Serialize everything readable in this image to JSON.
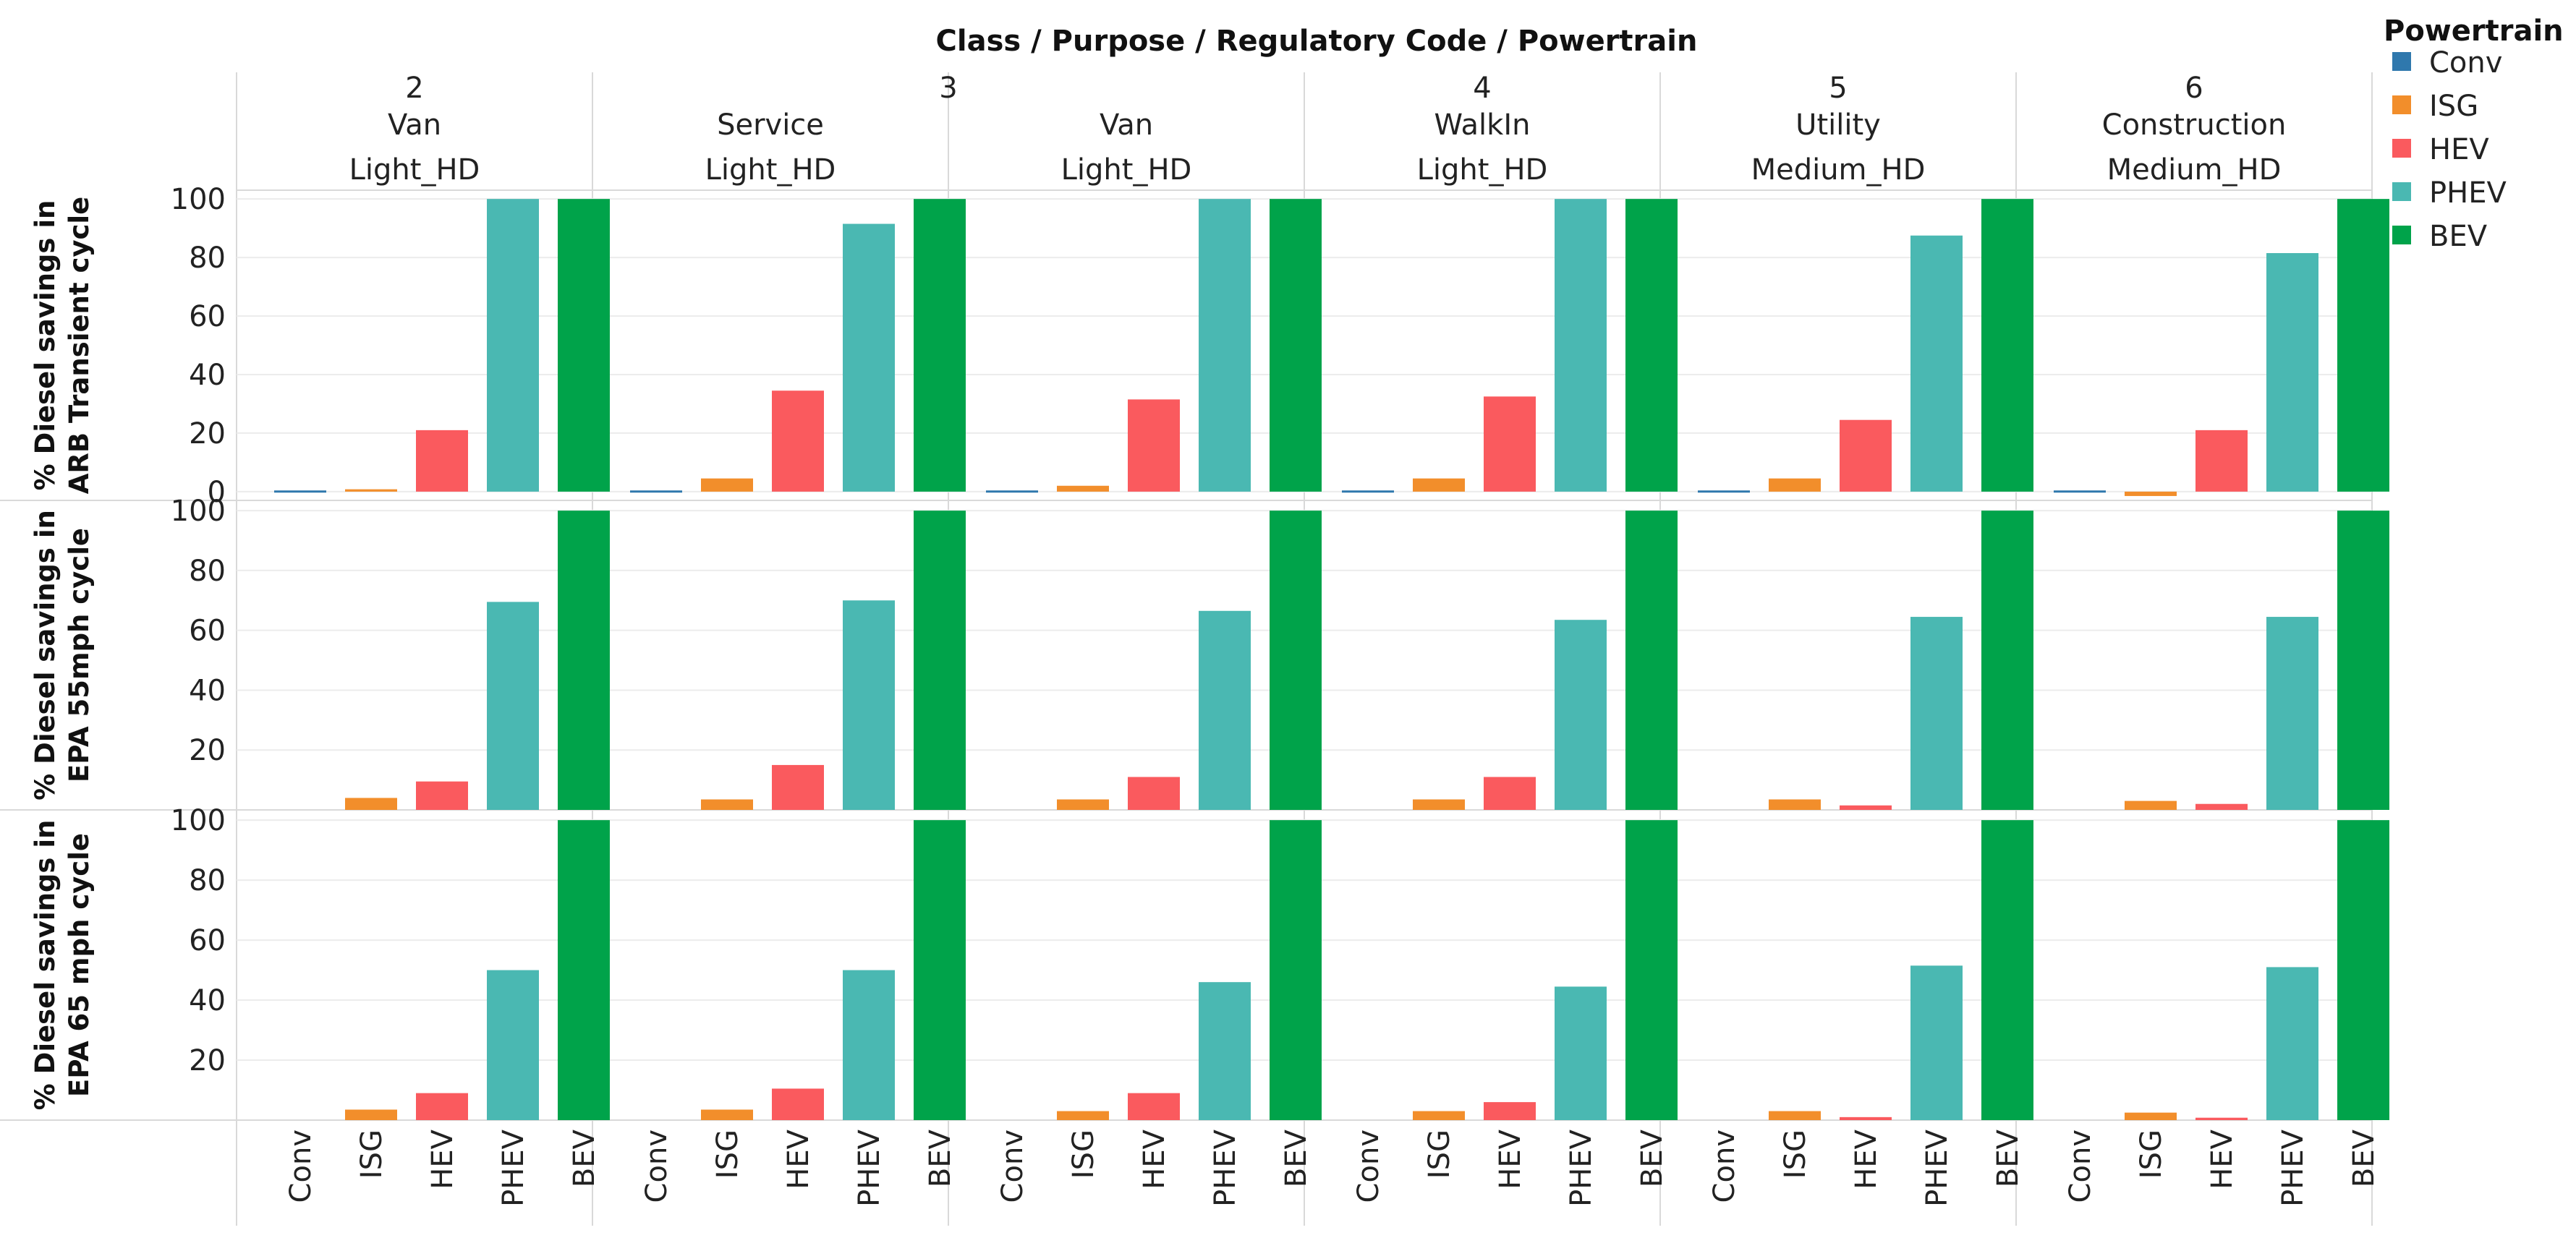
{
  "chart_data": {
    "type": "bar",
    "title": "Class  /  Purpose  /  Regulatory Code  /  Powertrain",
    "columns": [
      {
        "class": "2",
        "purpose": "Van",
        "regulatory_code": "Light_HD"
      },
      {
        "class": "3",
        "purpose": "Service",
        "regulatory_code": "Light_HD"
      },
      {
        "class": "3",
        "purpose": "Van",
        "regulatory_code": "Light_HD"
      },
      {
        "class": "4",
        "purpose": "WalkIn",
        "regulatory_code": "Light_HD"
      },
      {
        "class": "5",
        "purpose": "Utility",
        "regulatory_code": "Medium_HD"
      },
      {
        "class": "6",
        "purpose": "Construction",
        "regulatory_code": "Medium_HD"
      }
    ],
    "class_groups": [
      {
        "label": "2",
        "span": [
          0,
          0
        ]
      },
      {
        "label": "3",
        "span": [
          1,
          2
        ]
      },
      {
        "label": "4",
        "span": [
          3,
          3
        ]
      },
      {
        "label": "5",
        "span": [
          4,
          4
        ]
      },
      {
        "label": "6",
        "span": [
          5,
          5
        ]
      }
    ],
    "categories": [
      "Conv",
      "ISG",
      "HEV",
      "PHEV",
      "BEV"
    ],
    "colors": {
      "Conv": "#2f78ad",
      "ISG": "#f28e2b",
      "HEV": "#fa5a5e",
      "PHEV": "#4ab8b2",
      "BEV": "#00a34a"
    },
    "legend": {
      "title": "Powertrain",
      "position": "top-right",
      "entries": [
        "Conv",
        "ISG",
        "HEV",
        "PHEV",
        "BEV"
      ]
    },
    "rows": [
      {
        "label_lines": [
          "% Diesel savings in",
          "ARB Transient cycle"
        ],
        "ylim": [
          -3,
          103
        ],
        "ticks": [
          0,
          20,
          40,
          60,
          80,
          100
        ],
        "values": [
          [
            0.4,
            0.8,
            21,
            100,
            100
          ],
          [
            0.4,
            4.5,
            34.5,
            91.5,
            100
          ],
          [
            0.4,
            2,
            31.5,
            100,
            100
          ],
          [
            0.4,
            4.5,
            32.5,
            100,
            100
          ],
          [
            0.4,
            4.5,
            24.5,
            87.5,
            100
          ],
          [
            0.4,
            -1.5,
            21,
            81.5,
            100
          ]
        ]
      },
      {
        "label_lines": [
          "% Diesel savings in",
          "EPA 55mph cycle"
        ],
        "ylim": [
          0,
          101
        ],
        "ticks": [
          20,
          40,
          60,
          80,
          100
        ],
        "values": [
          [
            0,
            4,
            9.5,
            69.5,
            100
          ],
          [
            0,
            3.5,
            15,
            70,
            100
          ],
          [
            0,
            3.5,
            11,
            66.5,
            100
          ],
          [
            0,
            3.5,
            11,
            63.5,
            100
          ],
          [
            0,
            3.5,
            1.5,
            64.5,
            100
          ],
          [
            0,
            3,
            2,
            64.5,
            100
          ]
        ]
      },
      {
        "label_lines": [
          "% Diesel savings in",
          "EPA 65 mph cycle"
        ],
        "ylim": [
          0,
          101
        ],
        "ticks": [
          20,
          40,
          60,
          80,
          100
        ],
        "values": [
          [
            0,
            3.5,
            9,
            50,
            100
          ],
          [
            0,
            3.5,
            10.5,
            50,
            100
          ],
          [
            0,
            3,
            9,
            46,
            100
          ],
          [
            0,
            3,
            6,
            44.5,
            100
          ],
          [
            0,
            3,
            1,
            51.5,
            100
          ],
          [
            0,
            2.5,
            0.8,
            51,
            100
          ]
        ]
      }
    ]
  }
}
